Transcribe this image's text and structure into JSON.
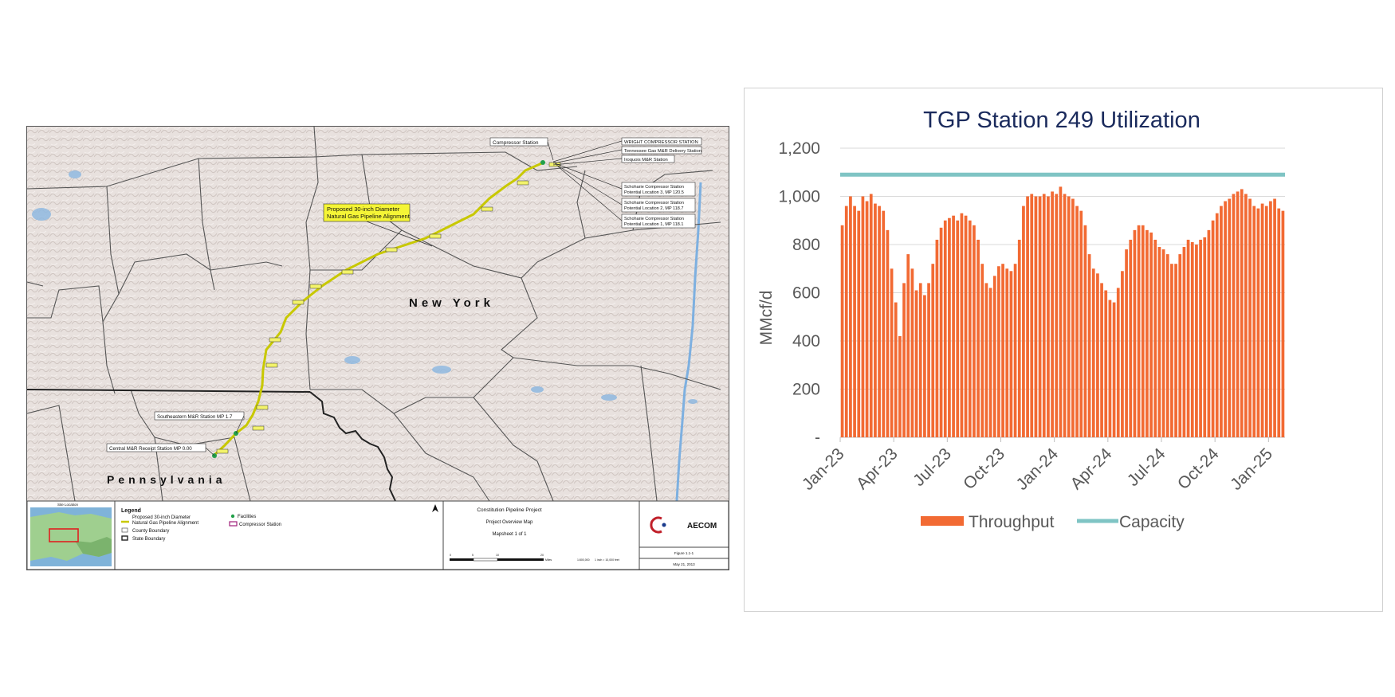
{
  "map": {
    "labels": {
      "state_ny": "New York",
      "state_pa": "Pennsylvania",
      "alignment_callout": [
        "Proposed 30-inch Diameter",
        "Natural Gas Pipeline Alignment"
      ],
      "central_station": "Central M&R Receipt Station MP 0.00",
      "southeastern_station": "Southeastern M&R Station MP 1.7",
      "compressor_station": "Compressor Station",
      "wright_station": "WRIGHT COMPRESSOR STATION",
      "tennessee_station": "Tennessee Gas M&R Delivery Station",
      "iroquois_station": "Iroquois M&R Station",
      "schoharie_1": [
        "Schoharie Compressor Station",
        "Potential Location 3, MP 120.5"
      ],
      "schoharie_2": [
        "Schoharie Compressor Station",
        "Potential Location 2, MP 118.7"
      ],
      "schoharie_3": [
        "Schoharie Compressor Station",
        "Potential Location 1, MP 118.1"
      ]
    },
    "legend": {
      "title": "Legend",
      "alignment": [
        "Proposed 30-inch Diameter",
        "Natural Gas Pipeline Alignment"
      ],
      "county": "County Boundary",
      "state": "State Boundary",
      "facilities": "Facilities",
      "compressor": "Compressor Station",
      "site_location": "Site Location"
    },
    "title_block": {
      "project": "Constitution Pipeline Project",
      "map_name": "Project Overview Map",
      "mapsheet": "Mapsheet 1 of 1",
      "figure": "Figure 1.1-1",
      "date": "May 21, 2013",
      "scale_ticks": [
        "0",
        "5",
        "10",
        "20"
      ],
      "scale_unit": "Miles",
      "scale_ratio": "1:800,000",
      "scale_inch": "1 inch = 10,000 feet",
      "company": "AECOM"
    },
    "colors": {
      "pipeline": "#c8c800",
      "terrain": "#e6dfdc",
      "water": "#7eb0e0",
      "compressor": "#a0207a"
    }
  },
  "chart_data": {
    "type": "bar",
    "title": "TGP Station 249 Utilization",
    "ylabel": "MMcf/d",
    "ylim": [
      0,
      1200
    ],
    "y_ticks": [
      {
        "value": 0,
        "label": "-"
      },
      {
        "value": 200,
        "label": "200"
      },
      {
        "value": 400,
        "label": "400"
      },
      {
        "value": 600,
        "label": "600"
      },
      {
        "value": 800,
        "label": "800"
      },
      {
        "value": 1000,
        "label": "1,000"
      },
      {
        "value": 1200,
        "label": "1,200"
      }
    ],
    "x_ticks": [
      "Jan-23",
      "Apr-23",
      "Jul-23",
      "Oct-23",
      "Jan-24",
      "Apr-24",
      "Jul-24",
      "Oct-24",
      "Jan-25"
    ],
    "x_range": [
      "Jan-23",
      "Mar-25"
    ],
    "grid": "horizontal",
    "legend_position": "bottom",
    "capacity": 1090,
    "colors": {
      "throughput": "#f26a33",
      "capacity": "#7fc4c4",
      "title": "#1a2a5c"
    },
    "series": [
      {
        "name": "Throughput",
        "values": [
          880,
          960,
          1000,
          960,
          940,
          1000,
          980,
          1010,
          970,
          960,
          940,
          860,
          700,
          560,
          420,
          640,
          760,
          700,
          610,
          640,
          590,
          640,
          720,
          820,
          870,
          900,
          910,
          920,
          900,
          930,
          920,
          900,
          880,
          820,
          720,
          640,
          620,
          670,
          710,
          720,
          700,
          690,
          720,
          820,
          960,
          1000,
          1010,
          1000,
          1000,
          1010,
          1000,
          1020,
          1010,
          1040,
          1010,
          1000,
          990,
          960,
          940,
          880,
          760,
          700,
          680,
          640,
          610,
          570,
          560,
          620,
          690,
          780,
          820,
          860,
          880,
          880,
          860,
          850,
          820,
          790,
          780,
          760,
          720,
          720,
          760,
          790,
          820,
          810,
          800,
          820,
          830,
          860,
          900,
          930,
          960,
          980,
          990,
          1010,
          1020,
          1030,
          1010,
          990,
          960,
          950,
          970,
          960,
          980,
          990,
          950,
          940
        ]
      },
      {
        "name": "Capacity",
        "value": 1090
      }
    ]
  }
}
